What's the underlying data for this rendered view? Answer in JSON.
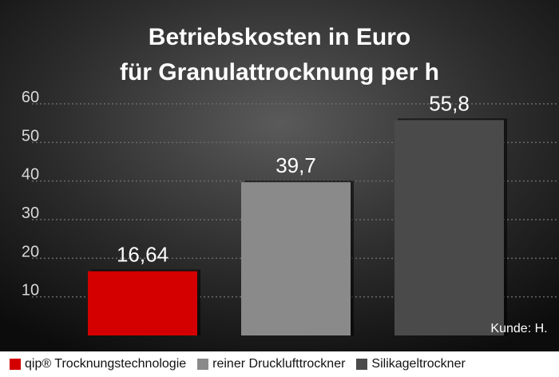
{
  "chart_data": {
    "type": "bar",
    "title": "Betriebskosten in Euro",
    "subtitle": "für Granulattrocknung per h",
    "categories": [
      "qip® Trocknungstechnologie",
      "reiner Drucklufttrockner",
      "Silikageltrockner"
    ],
    "values": [
      16.64,
      39.7,
      55.8
    ],
    "value_labels": [
      "16,64",
      "39,7",
      "55,8"
    ],
    "colors": [
      "#d40000",
      "#8a8a8a",
      "#4a4a4a"
    ],
    "yticks": [
      "10",
      "20",
      "30",
      "40",
      "50",
      "60"
    ],
    "ylim": [
      0,
      60
    ],
    "grid": true,
    "legend": "bottom",
    "annotation": "Kunde: H."
  }
}
